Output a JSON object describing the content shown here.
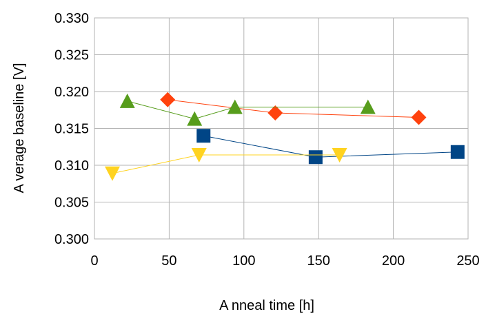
{
  "chart_data": {
    "type": "line",
    "title": "",
    "xlabel": "A nneal time [h]",
    "ylabel": "A verage baseline [V]",
    "xlim": [
      0,
      250
    ],
    "ylim": [
      0.3,
      0.33
    ],
    "xticks": [
      0,
      50,
      100,
      150,
      200,
      250
    ],
    "yticks": [
      0.3,
      0.305,
      0.31,
      0.315,
      0.32,
      0.325,
      0.33
    ],
    "xtick_labels": [
      "0",
      "50",
      "100",
      "150",
      "200",
      "250"
    ],
    "ytick_labels": [
      "0.300",
      "0.305",
      "0.310",
      "0.315",
      "0.320",
      "0.325",
      "0.330"
    ],
    "grid": true,
    "legend": false,
    "series": [
      {
        "name": "series-red-diamond",
        "color": "#ff420e",
        "marker": "diamond",
        "x": [
          49,
          121,
          217
        ],
        "y": [
          0.3189,
          0.3171,
          0.3165
        ]
      },
      {
        "name": "series-green-triangle",
        "color": "#579d1c",
        "marker": "triangle-up",
        "x": [
          22,
          67,
          94,
          183
        ],
        "y": [
          0.3187,
          0.3163,
          0.3179,
          0.3179
        ]
      },
      {
        "name": "series-blue-square",
        "color": "#004586",
        "marker": "square",
        "x": [
          73,
          148,
          243
        ],
        "y": [
          0.314,
          0.3111,
          0.3118
        ]
      },
      {
        "name": "series-yellow-triangle-down",
        "color": "#ffd320",
        "marker": "triangle-down",
        "x": [
          12,
          70,
          164
        ],
        "y": [
          0.3089,
          0.3114,
          0.3114
        ]
      }
    ]
  }
}
